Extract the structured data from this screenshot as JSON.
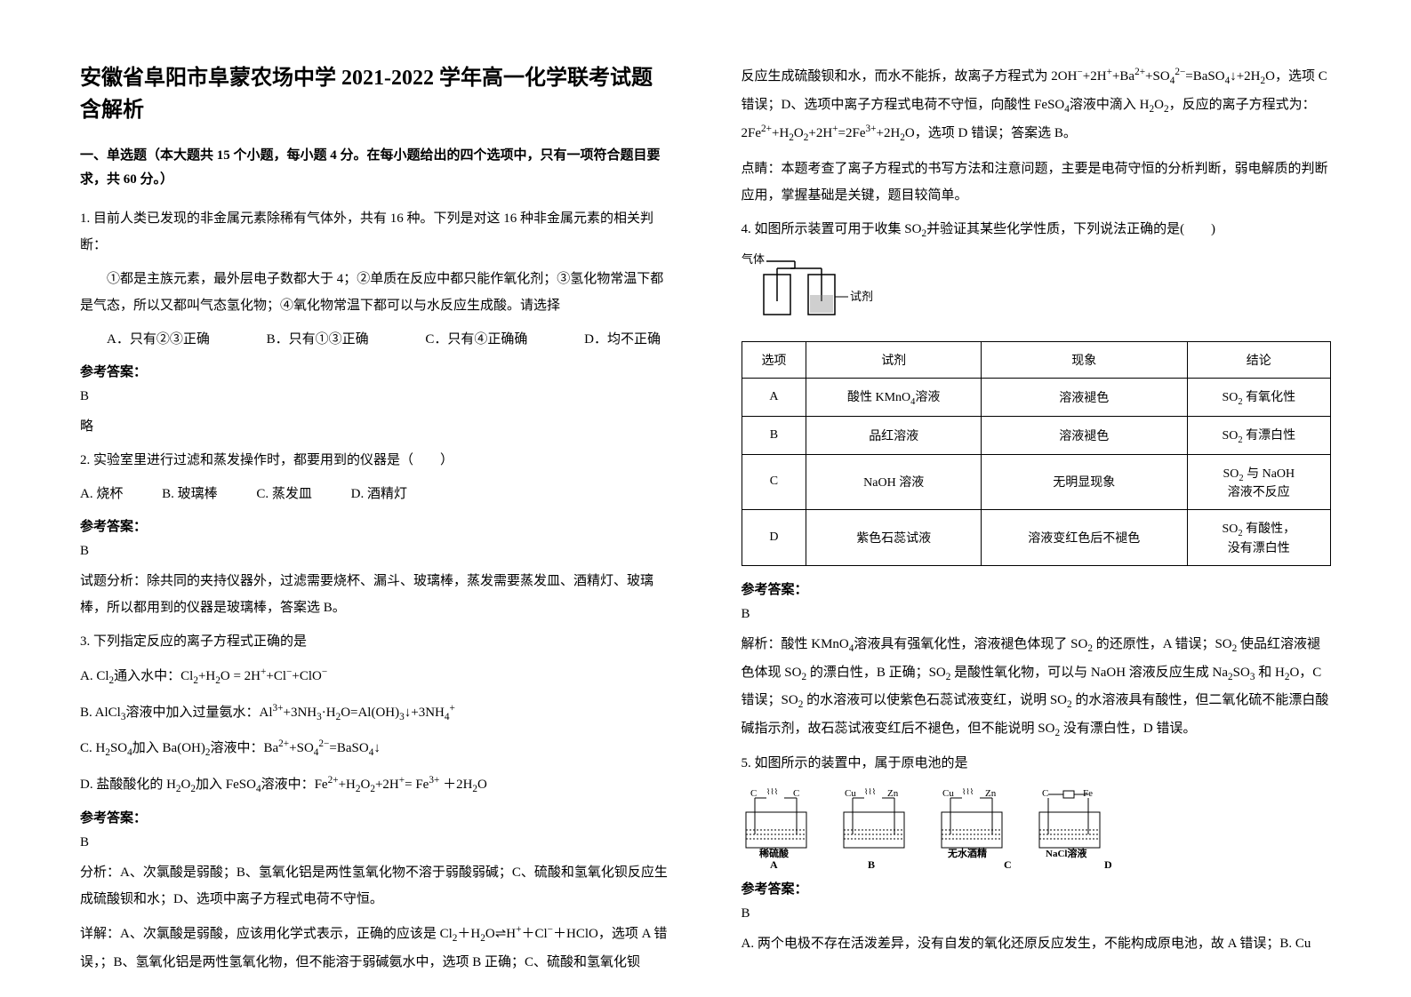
{
  "title": "安徽省阜阳市阜蒙农场中学 2021-2022 学年高一化学联考试题含解析",
  "sectionHeader": "一、单选题（本大题共 15 个小题，每小题 4 分。在每小题给出的四个选项中，只有一项符合题目要求，共 60 分。）",
  "q1": {
    "stem": "1. 目前人类已发现的非金属元素除稀有气体外，共有 16 种。下列是对这 16 种非金属元素的相关判断：",
    "detail": "①都是主族元素，最外层电子数都大于 4；②单质在反应中都只能作氧化剂；③氢化物常温下都是气态，所以又都叫气态氢化物；④氧化物常温下都可以与水反应生成酸。请选择",
    "optA": "A．只有②③正确",
    "optB": "B．只有①③正确",
    "optC": "C．只有④正确",
    "optD": "D．均不正确",
    "answerLabel": "参考答案：",
    "answer": "B",
    "note": "略"
  },
  "q2": {
    "stem": "2. 实验室里进行过滤和蒸发操作时，都要用到的仪器是（　　）",
    "optA": "A. 烧杯",
    "optB": "B. 玻璃棒",
    "optC": "C. 蒸发皿",
    "optD": "D. 酒精灯",
    "answerLabel": "参考答案：",
    "answer": "B",
    "analysis": "试题分析：除共同的夹持仪器外，过滤需要烧杯、漏斗、玻璃棒，蒸发需要蒸发皿、酒精灯、玻璃棒，所以都用到的仪器是玻璃棒，答案选 B。"
  },
  "q3": {
    "stem": "3. 下列指定反应的离子方程式正确的是",
    "optA_html": "A. Cl<sub>2</sub>通入水中：Cl<sub>2</sub>+H<sub>2</sub>O = 2H<sup>+</sup>+Cl<sup>−</sup>+ClO<sup>−</sup>",
    "optB_html": "B. AlCl<sub>3</sub>溶液中加入过量氨水：Al<sup>3+</sup>+3NH<sub>3</sub>·H<sub>2</sub>O=Al(OH)<sub>3</sub>↓+3NH<sub>4</sub><sup>+</sup>",
    "optC_html": "C. H<sub>2</sub>SO<sub>4</sub>加入 Ba(OH)<sub>2</sub>溶液中：Ba<sup>2+</sup>+SO<sub>4</sub><sup>2−</sup>=BaSO<sub>4</sub>↓",
    "optD_html": "D. 盐酸酸化的 H<sub>2</sub>O<sub>2</sub>加入 FeSO<sub>4</sub>溶液中：Fe<sup>2+</sup>+H<sub>2</sub>O<sub>2</sub>+2H<sup>+</sup>= Fe<sup>3+</sup> ＋2H<sub>2</sub>O",
    "answerLabel": "参考答案：",
    "answer": "B",
    "analysis1": "分析：A、次氯酸是弱酸；B、氢氧化铝是两性氢氧化物不溶于弱酸弱碱；C、硫酸和氢氧化钡反应生成硫酸钡和水；D、选项中离子方程式电荷不守恒。",
    "analysis2_html": "详解：A、次氯酸是弱酸，应该用化学式表示，正确的应该是 Cl<sub>2</sub>＋H<sub>2</sub>O⇌H<sup>+</sup>＋Cl<sup>−</sup>＋HClO，选项 A 错误，；B、氢氧化铝是两性氢氧化物，但不能溶于弱碱氨水中，选项 B 正确；C、硫酸和氢氧化钡"
  },
  "rightCol": {
    "cont1_html": "反应生成硫酸钡和水，而水不能拆，故离子方程式为 2OH<sup>−</sup>+2H<sup>+</sup>+Ba<sup>2+</sup>+SO<sub>4</sub><sup>2−</sup>=BaSO<sub>4</sub>↓+2H<sub>2</sub>O，选项 C 错误；D、选项中离子方程式电荷不守恒，向酸性 FeSO<sub>4</sub>溶液中滴入 H<sub>2</sub>O<sub>2</sub>，反应的离子方程式为：2Fe<sup>2+</sup>+H<sub>2</sub>O<sub>2</sub>+2H<sup>+</sup>=2Fe<sup>3+</sup>+2H<sub>2</sub>O，选项 D 错误；答案选 B。",
    "cont2": "点睛：本题考查了离子方程式的书写方法和注意问题，主要是电荷守恒的分析判断，弱电解质的判断应用，掌握基础是关键，题目较简单。",
    "q4": {
      "stem_html": "4. 如图所示装置可用于收集 SO<sub>2</sub>并验证其某些化学性质，下列说法正确的是(　　)",
      "diagramLabels": {
        "gas": "气体",
        "reagent": "试剂"
      },
      "tableHeaders": [
        "选项",
        "试剂",
        "现象",
        "结论"
      ],
      "rows": [
        {
          "opt": "A",
          "reagent_html": "酸性 KMnO<sub>4</sub>溶液",
          "phenom": "溶液褪色",
          "concl_html": "SO<sub>2</sub> 有氧化性"
        },
        {
          "opt": "B",
          "reagent": "品红溶液",
          "phenom": "溶液褪色",
          "concl_html": "SO<sub>2</sub> 有漂白性"
        },
        {
          "opt": "C",
          "reagent": "NaOH 溶液",
          "phenom": "无明显现象",
          "concl_html": "SO<sub>2</sub> 与 NaOH<br>溶液不反应"
        },
        {
          "opt": "D",
          "reagent": "紫色石蕊试液",
          "phenom": "溶液变红色后不褪色",
          "concl_html": "SO<sub>2</sub> 有酸性，<br>没有漂白性"
        }
      ],
      "answerLabel": "参考答案：",
      "answer": "B",
      "analysis_html": "解析：酸性 KMnO<sub>4</sub>溶液具有强氧化性，溶液褪色体现了 SO<sub>2</sub> 的还原性，A 错误；SO<sub>2</sub> 使品红溶液褪色体现 SO<sub>2</sub> 的漂白性，B 正确；SO<sub>2</sub> 是酸性氧化物，可以与 NaOH 溶液反应生成 Na<sub>2</sub>SO<sub>3</sub> 和 H<sub>2</sub>O，C 错误；SO<sub>2</sub> 的水溶液可以使紫色石蕊试液变红，说明 SO<sub>2</sub> 的水溶液具有酸性，但二氧化硫不能漂白酸碱指示剂，故石蕊试液变红后不褪色，但不能说明 SO<sub>2</sub> 没有漂白性，D 错误。"
    },
    "q5": {
      "stem": "5. 如图所示的装置中，属于原电池的是",
      "labels": {
        "A": {
          "left": "C",
          "right": "C",
          "liquid": "稀硫酸",
          "tag": "A"
        },
        "B": {
          "left": "Cu",
          "right": "Zn",
          "liquid": "",
          "tag": "B"
        },
        "C": {
          "left": "Cu",
          "right": "Zn",
          "liquid": "无水酒精",
          "tag": "C"
        },
        "D": {
          "left": "C",
          "right": "Fe",
          "liquid": "NaCl溶液",
          "tag": "D"
        }
      },
      "answerLabel": "参考答案：",
      "answer": "B",
      "analysis": "A. 两个电极不存在活泼差异，没有自发的氧化还原反应发生，不能构成原电池，故 A 错误；B. Cu"
    }
  }
}
